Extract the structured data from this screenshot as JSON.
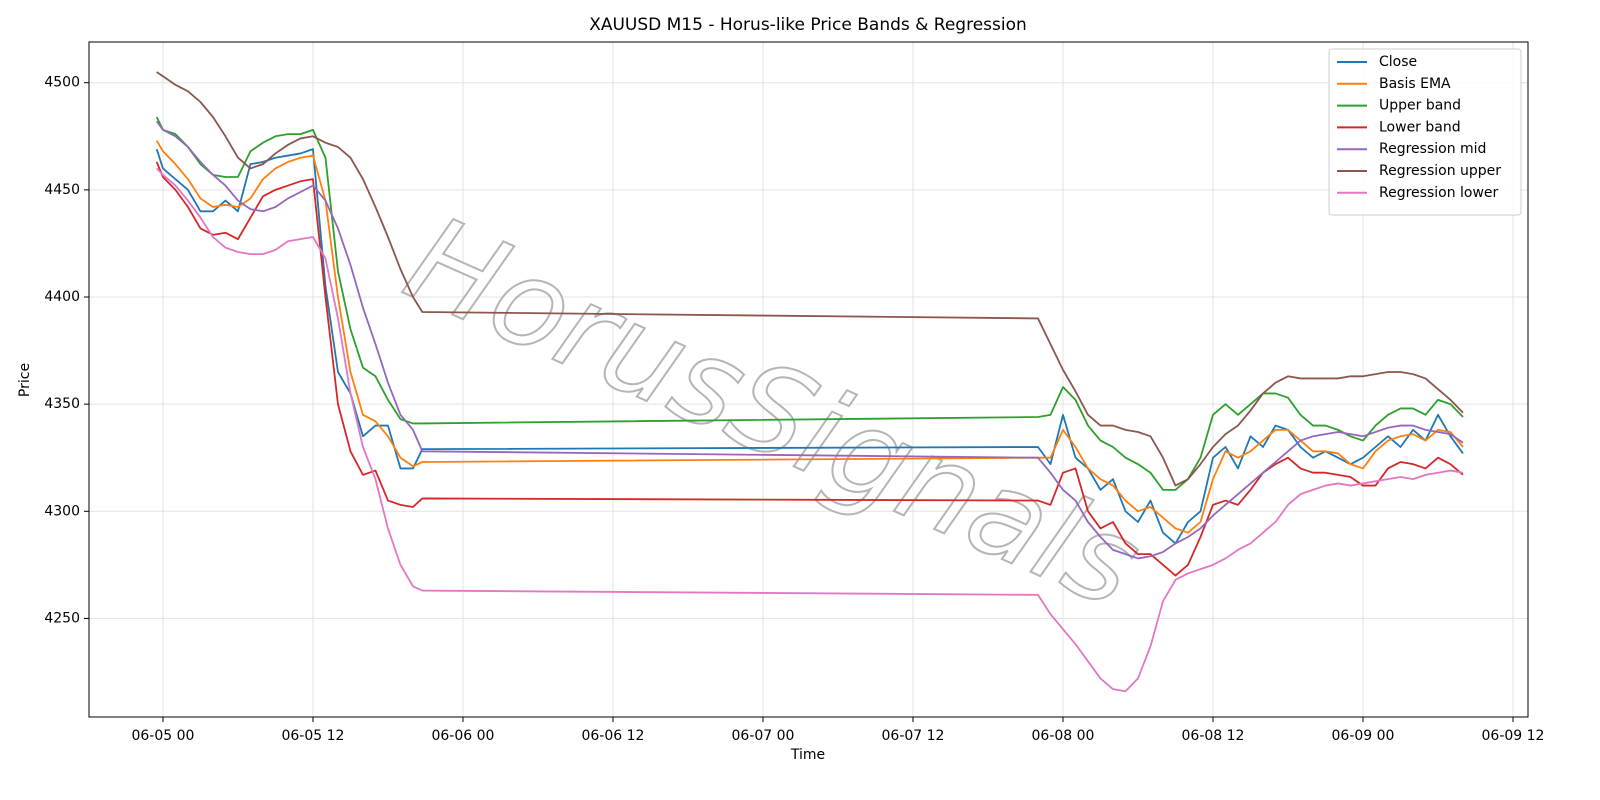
{
  "chart_data": {
    "type": "line",
    "title": "XAUUSD M15 - Horus-like Price Bands & Regression",
    "x_label": "Time",
    "y_label": "Price",
    "watermark": "HorusSignals",
    "grid": true,
    "legend": "upper right",
    "xlim": [
      "06-04 18:05",
      "06-09 13:12"
    ],
    "xticks": [
      "06-05 00",
      "06-05 12",
      "06-06 00",
      "06-06 12",
      "06-07 00",
      "06-07 12",
      "06-08 00",
      "06-08 12",
      "06-09 00",
      "06-09 12"
    ],
    "ylim": [
      4204,
      4519
    ],
    "yticks": [
      4250,
      4300,
      4350,
      4400,
      4450,
      4500
    ],
    "x": [
      "06-04 23:30",
      "06-05 00:00",
      "06-05 01:00",
      "06-05 02:00",
      "06-05 03:00",
      "06-05 04:00",
      "06-05 05:00",
      "06-05 06:00",
      "06-05 07:00",
      "06-05 08:00",
      "06-05 09:00",
      "06-05 10:00",
      "06-05 11:00",
      "06-05 12:00",
      "06-05 13:00",
      "06-05 14:00",
      "06-05 15:00",
      "06-05 16:00",
      "06-05 17:00",
      "06-05 18:00",
      "06-05 19:00",
      "06-05 20:00",
      "06-05 20:45",
      "06-07 22:00",
      "06-07 23:00",
      "06-08 00:00",
      "06-08 01:00",
      "06-08 02:00",
      "06-08 03:00",
      "06-08 04:00",
      "06-08 05:00",
      "06-08 06:00",
      "06-08 07:00",
      "06-08 08:00",
      "06-08 09:00",
      "06-08 10:00",
      "06-08 11:00",
      "06-08 12:00",
      "06-08 13:00",
      "06-08 14:00",
      "06-08 15:00",
      "06-08 16:00",
      "06-08 17:00",
      "06-08 18:00",
      "06-08 19:00",
      "06-08 20:00",
      "06-08 21:00",
      "06-08 22:00",
      "06-08 23:00",
      "06-09 00:00",
      "06-09 01:00",
      "06-09 02:00",
      "06-09 03:00",
      "06-09 04:00",
      "06-09 05:00",
      "06-09 06:00",
      "06-09 07:00",
      "06-09 08:00"
    ],
    "series": [
      {
        "name": "Close",
        "color": "#1f77b4",
        "values": [
          4469,
          4460,
          4455,
          4450,
          4440,
          4440,
          4445,
          4440,
          4462,
          4463,
          4465,
          4466,
          4467,
          4469,
          4405,
          4365,
          4355,
          4335,
          4340,
          4340,
          4320,
          4320,
          4329,
          4330,
          4322,
          4345,
          4325,
          4320,
          4310,
          4315,
          4300,
          4295,
          4305,
          4290,
          4285,
          4295,
          4300,
          4325,
          4330,
          4320,
          4335,
          4330,
          4340,
          4338,
          4330,
          4325,
          4328,
          4325,
          4322,
          4325,
          4330,
          4335,
          4330,
          4338,
          4333,
          4345,
          4335,
          4327
        ]
      },
      {
        "name": "Basis EMA",
        "color": "#ff7f0e",
        "values": [
          4473,
          4468,
          4462,
          4455,
          4446,
          4442,
          4443,
          4442,
          4446,
          4455,
          4460,
          4463,
          4465,
          4466,
          4445,
          4400,
          4365,
          4345,
          4342,
          4335,
          4325,
          4321,
          4323,
          4325,
          4325,
          4338,
          4330,
          4320,
          4315,
          4312,
          4305,
          4300,
          4302,
          4297,
          4292,
          4290,
          4295,
          4315,
          4328,
          4325,
          4328,
          4333,
          4338,
          4338,
          4333,
          4328,
          4328,
          4327,
          4322,
          4320,
          4328,
          4333,
          4335,
          4336,
          4333,
          4338,
          4337,
          4330
        ]
      },
      {
        "name": "Upper band",
        "color": "#2ca02c",
        "values": [
          4484,
          4478,
          4476,
          4470,
          4462,
          4457,
          4456,
          4456,
          4468,
          4472,
          4475,
          4476,
          4476,
          4478,
          4465,
          4412,
          4385,
          4367,
          4363,
          4352,
          4343,
          4341,
          4341,
          4344,
          4345,
          4358,
          4352,
          4340,
          4333,
          4330,
          4325,
          4322,
          4318,
          4310,
          4310,
          4315,
          4325,
          4345,
          4350,
          4345,
          4350,
          4355,
          4355,
          4353,
          4345,
          4340,
          4340,
          4338,
          4335,
          4333,
          4340,
          4345,
          4348,
          4348,
          4345,
          4352,
          4350,
          4344
        ]
      },
      {
        "name": "Lower band",
        "color": "#d62728",
        "values": [
          4463,
          4456,
          4450,
          4442,
          4432,
          4429,
          4430,
          4427,
          4437,
          4447,
          4450,
          4452,
          4454,
          4455,
          4400,
          4350,
          4328,
          4317,
          4319,
          4305,
          4303,
          4302,
          4306,
          4305,
          4303,
          4318,
          4320,
          4300,
          4292,
          4295,
          4285,
          4280,
          4280,
          4275,
          4270,
          4275,
          4288,
          4303,
          4305,
          4303,
          4310,
          4318,
          4322,
          4325,
          4320,
          4318,
          4318,
          4317,
          4316,
          4312,
          4312,
          4320,
          4323,
          4322,
          4320,
          4325,
          4322,
          4317
        ]
      },
      {
        "name": "Regression mid",
        "color": "#9467bd",
        "values": [
          4482,
          4478,
          4475,
          4470,
          4463,
          4457,
          4452,
          4445,
          4441,
          4440,
          4442,
          4446,
          4449,
          4452,
          4445,
          4432,
          4415,
          4395,
          4378,
          4360,
          4345,
          4338,
          4328,
          4325,
          4318,
          4310,
          4305,
          4295,
          4288,
          4282,
          4280,
          4278,
          4279,
          4281,
          4285,
          4288,
          4292,
          4298,
          4303,
          4308,
          4313,
          4318,
          4323,
          4328,
          4333,
          4335,
          4336,
          4337,
          4336,
          4335,
          4337,
          4339,
          4340,
          4340,
          4338,
          4337,
          4336,
          4332
        ]
      },
      {
        "name": "Regression upper",
        "color": "#8c564b",
        "values": [
          4505,
          4503,
          4499,
          4496,
          4491,
          4484,
          4475,
          4465,
          4460,
          4462,
          4467,
          4471,
          4474,
          4475,
          4472,
          4470,
          4465,
          4455,
          4442,
          4428,
          4413,
          4400,
          4393,
          4390,
          4378,
          4366,
          4356,
          4345,
          4340,
          4340,
          4338,
          4337,
          4335,
          4325,
          4312,
          4315,
          4322,
          4330,
          4336,
          4340,
          4347,
          4355,
          4360,
          4363,
          4362,
          4362,
          4362,
          4362,
          4363,
          4363,
          4364,
          4365,
          4365,
          4364,
          4362,
          4357,
          4352,
          4346
        ]
      },
      {
        "name": "Regression lower",
        "color": "#e377c2",
        "values": [
          4460,
          4457,
          4452,
          4445,
          4437,
          4428,
          4423,
          4421,
          4420,
          4420,
          4422,
          4426,
          4427,
          4428,
          4418,
          4390,
          4355,
          4330,
          4315,
          4292,
          4275,
          4265,
          4263,
          4261,
          4252,
          4245,
          4238,
          4230,
          4222,
          4217,
          4216,
          4222,
          4237,
          4258,
          4268,
          4271,
          4273,
          4275,
          4278,
          4282,
          4285,
          4290,
          4295,
          4303,
          4308,
          4310,
          4312,
          4313,
          4312,
          4313,
          4314,
          4315,
          4316,
          4315,
          4317,
          4318,
          4319,
          4318
        ]
      }
    ]
  }
}
